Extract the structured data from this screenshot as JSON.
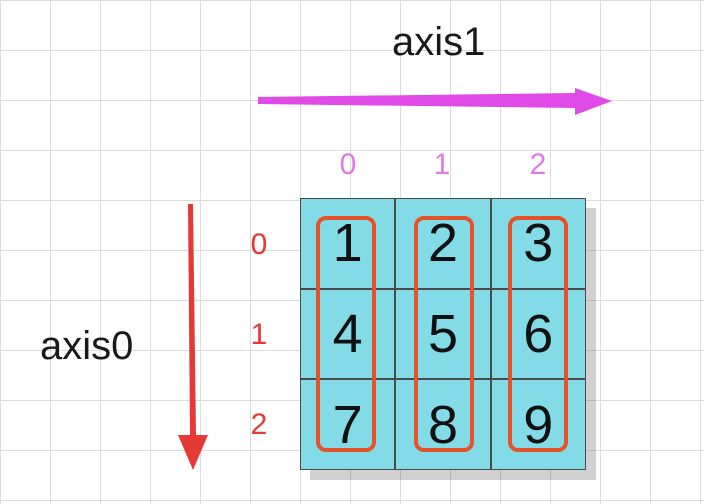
{
  "axes": {
    "axis1_label": "axis1",
    "axis0_label": "axis0",
    "axis1_color": "#e04ae6",
    "axis0_color": "#e53935"
  },
  "column_indices": [
    "0",
    "1",
    "2"
  ],
  "row_indices": [
    "0",
    "1",
    "2"
  ],
  "matrix": [
    [
      "1",
      "2",
      "3"
    ],
    [
      "4",
      "5",
      "6"
    ],
    [
      "7",
      "8",
      "9"
    ]
  ],
  "colors": {
    "cell_fill": "#84dbe8",
    "highlight_border": "#e5532a",
    "col_index": "#e07ae8",
    "row_index": "#e53935"
  }
}
